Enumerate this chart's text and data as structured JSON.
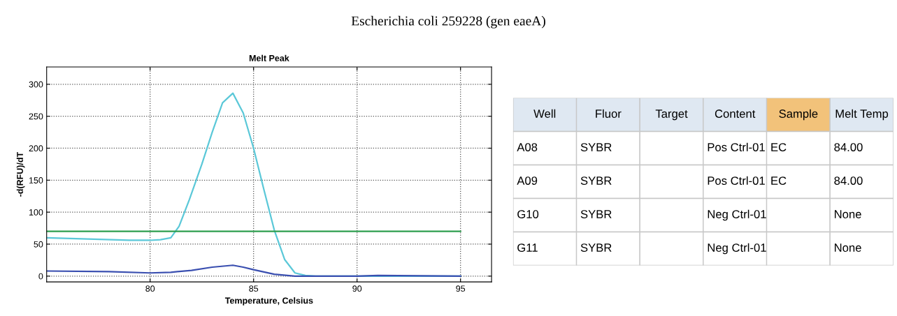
{
  "chart_data": [
    {
      "type": "line",
      "title": "Melt Peak",
      "xlabel": "Temperature, Celsius",
      "ylabel": "-d(RFU)/dT",
      "annotations": [
        "Escherichia coli 259228 (gen eaeA)"
      ],
      "xlim": [
        75,
        96.5
      ],
      "xticks": [
        80,
        85,
        90,
        95
      ],
      "ylim": [
        -9,
        327
      ],
      "yticks": [
        0,
        50,
        100,
        150,
        200,
        250,
        300
      ],
      "grid": true,
      "legend": false,
      "marker": "none",
      "line_style": "solid",
      "series": [
        {
          "color": "#5bc8d8",
          "x": [
            75,
            77,
            79,
            80,
            80.5,
            81,
            81.4,
            81.9,
            82.5,
            83,
            83.5,
            84,
            84.5,
            85,
            85.5,
            86,
            86.5,
            87,
            87.5,
            88,
            90,
            95
          ],
          "values": [
            60,
            58,
            56,
            56,
            57,
            60,
            78,
            120,
            175,
            225,
            271,
            286,
            255,
            200,
            135,
            72,
            26,
            5,
            1,
            0,
            0,
            0
          ]
        },
        {
          "color": "#3a4fb0",
          "x": [
            75,
            78,
            80,
            81,
            82,
            83,
            84,
            84.5,
            85,
            86,
            87,
            90,
            91,
            95
          ],
          "values": [
            8,
            7,
            5,
            6,
            9,
            14,
            17,
            14,
            10,
            3,
            0,
            0,
            1,
            0
          ]
        },
        {
          "color": "#2e9e4f",
          "x": [
            75,
            95
          ],
          "values": [
            70,
            70
          ]
        }
      ]
    },
    {
      "type": "other",
      "categories": [
        "Well",
        "Fluor",
        "Target",
        "Content",
        "Sample",
        "Melt Temp"
      ],
      "cell_labels": [
        [
          "A08",
          "SYBR",
          null,
          "Pos Ctrl-01",
          "EC",
          "84.00"
        ],
        [
          "A09",
          "SYBR",
          null,
          "Pos Ctrl-01",
          "EC",
          "84.00"
        ],
        [
          "G10",
          "SYBR",
          null,
          "Neg Ctrl-01",
          null,
          "None"
        ],
        [
          "G11",
          "SYBR",
          null,
          "Neg Ctrl-01",
          null,
          "None"
        ]
      ]
    }
  ]
}
